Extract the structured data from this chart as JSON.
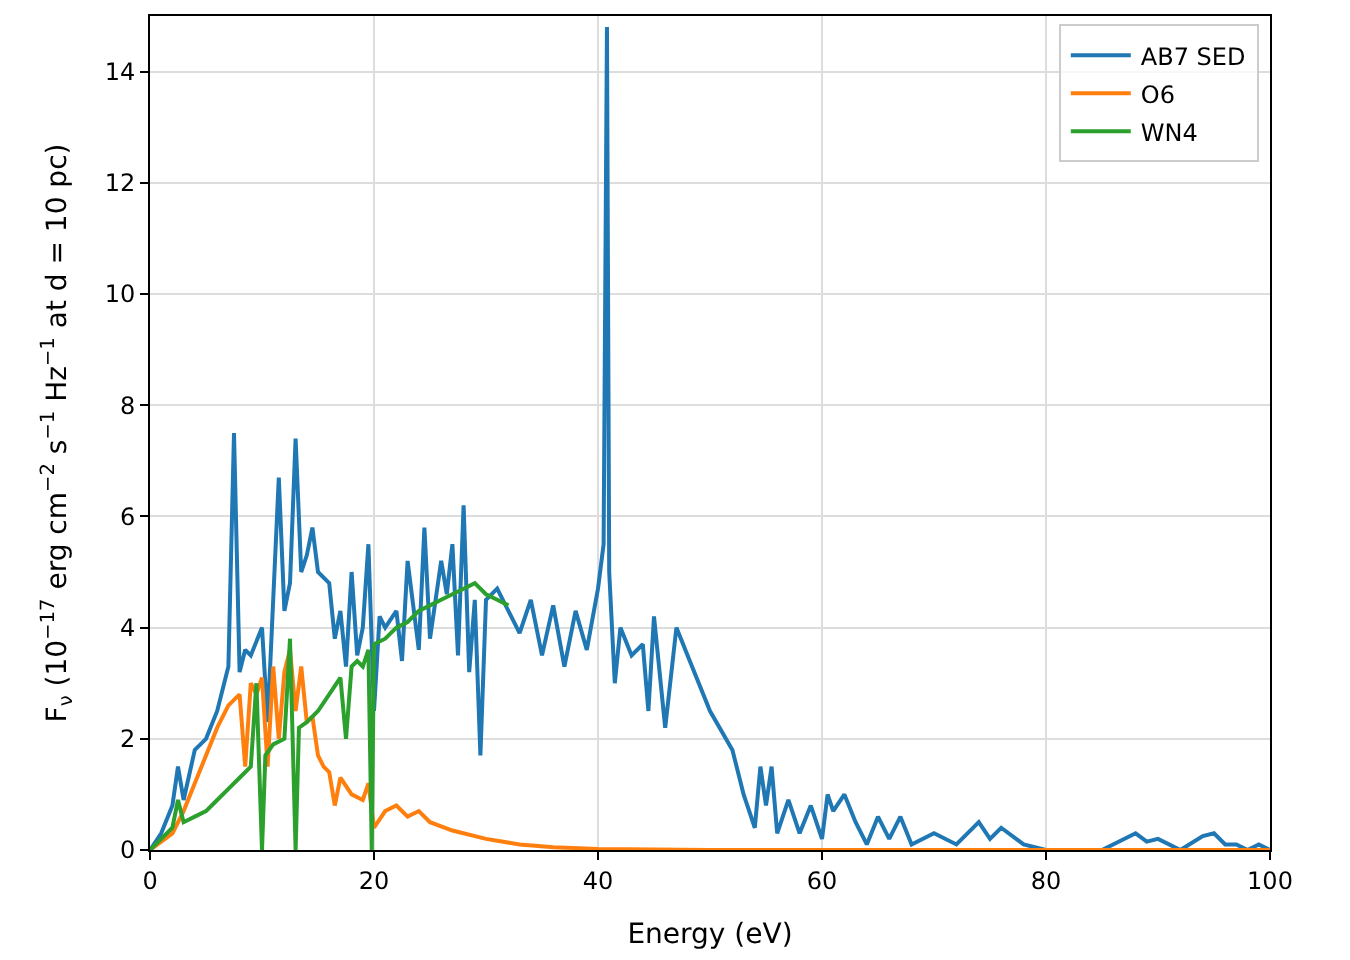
{
  "chart_data": {
    "type": "line",
    "xlabel": "Energy (eV)",
    "ylabel": "F$_{ν}$ (10$^{−17}$ erg cm$^{−2}$ s$^{−1}$ Hz$^{−1}$ at d = 10 pc)",
    "xlim": [
      0,
      100
    ],
    "xticks": [
      0,
      20,
      40,
      60,
      80,
      100
    ],
    "ylim": [
      0,
      15
    ],
    "yticks": [
      0,
      2,
      4,
      6,
      8,
      10,
      12,
      14
    ],
    "grid": true,
    "legend": "top right",
    "marker": "none",
    "line_style": "solid",
    "series": [
      {
        "name": "AB7 SED",
        "color": "#1f77b4",
        "x": [
          0,
          1,
          2,
          2.5,
          3,
          4,
          5,
          6,
          7,
          7.5,
          8,
          8.5,
          9,
          10,
          10.5,
          11,
          11.5,
          12,
          12.5,
          13,
          13.5,
          14,
          14.5,
          15,
          16,
          16.5,
          17,
          17.5,
          18,
          18.5,
          19,
          19.5,
          20,
          20.5,
          21,
          22,
          22.5,
          23,
          24,
          24.5,
          25,
          26,
          26.5,
          27,
          27.5,
          28,
          28.5,
          29,
          29.5,
          30,
          31,
          32,
          33,
          34,
          35,
          36,
          37,
          38,
          39,
          40,
          40.5,
          40.8,
          41,
          41.5,
          42,
          43,
          44,
          44.5,
          45,
          46,
          47,
          48,
          50,
          52,
          53,
          54,
          54.5,
          55,
          55.5,
          56,
          57,
          58,
          59,
          60,
          60.5,
          61,
          62,
          63,
          64,
          65,
          66,
          67,
          68,
          70,
          72,
          74,
          75,
          76,
          78,
          80,
          82,
          85,
          88,
          89,
          90,
          92,
          94,
          95,
          96,
          97,
          98,
          99,
          100
        ],
        "values": [
          0,
          0.3,
          0.8,
          1.5,
          0.9,
          1.8,
          2.0,
          2.5,
          3.3,
          7.5,
          3.2,
          3.6,
          3.5,
          4.0,
          2.3,
          4.5,
          6.7,
          4.3,
          4.8,
          7.4,
          5.0,
          5.3,
          5.8,
          5.0,
          4.8,
          3.8,
          4.3,
          3.3,
          5.0,
          3.5,
          4.0,
          5.5,
          2.5,
          4.2,
          4.0,
          4.3,
          3.4,
          5.2,
          3.6,
          5.8,
          3.8,
          5.2,
          4.6,
          5.5,
          3.5,
          6.2,
          3.2,
          4.5,
          1.7,
          4.5,
          4.7,
          4.3,
          3.9,
          4.5,
          3.5,
          4.4,
          3.3,
          4.3,
          3.6,
          4.7,
          5.5,
          14.8,
          5.0,
          3.0,
          4.0,
          3.5,
          3.7,
          2.5,
          4.2,
          2.2,
          4.0,
          3.5,
          2.5,
          1.8,
          1.0,
          0.4,
          1.5,
          0.8,
          1.5,
          0.3,
          0.9,
          0.3,
          0.8,
          0.2,
          1.0,
          0.7,
          1.0,
          0.5,
          0.1,
          0.6,
          0.2,
          0.6,
          0.1,
          0.3,
          0.1,
          0.5,
          0.2,
          0.4,
          0.1,
          0.0,
          0.0,
          0.0,
          0.3,
          0.15,
          0.2,
          0.0,
          0.25,
          0.3,
          0.1,
          0.1,
          0.0,
          0.1,
          0.0
        ]
      },
      {
        "name": "O6",
        "color": "#ff7f0e",
        "x": [
          0,
          2,
          3,
          4,
          5,
          6,
          7,
          8,
          8.5,
          9,
          9.5,
          10,
          10.5,
          11,
          11.5,
          12,
          12.5,
          13,
          13.5,
          14,
          14.5,
          15,
          15.5,
          16,
          16.5,
          17,
          18,
          19,
          19.5,
          20,
          21,
          22,
          23,
          24,
          25,
          27,
          30,
          33,
          36,
          40,
          50,
          100
        ],
        "values": [
          0,
          0.3,
          0.7,
          1.2,
          1.7,
          2.2,
          2.6,
          2.8,
          1.5,
          3.0,
          2.8,
          3.1,
          1.5,
          3.3,
          2.0,
          3.2,
          3.6,
          2.5,
          3.3,
          2.3,
          2.4,
          1.7,
          1.5,
          1.4,
          0.8,
          1.3,
          1.0,
          0.9,
          1.2,
          0.4,
          0.7,
          0.8,
          0.6,
          0.7,
          0.5,
          0.35,
          0.2,
          0.1,
          0.05,
          0.02,
          0.0,
          0.0
        ]
      },
      {
        "name": "WN4",
        "color": "#2ca02c",
        "x": [
          0,
          1,
          2,
          2.5,
          3,
          4,
          5,
          6,
          7,
          8,
          9,
          9.5,
          10,
          10.3,
          11,
          12,
          12.5,
          13,
          13.3,
          14,
          15,
          16,
          17,
          17.5,
          18,
          18.5,
          19,
          19.5,
          19.8,
          20,
          21,
          22,
          23,
          24,
          25,
          26,
          27,
          28,
          29,
          30,
          31,
          32
        ],
        "values": [
          0,
          0.2,
          0.4,
          0.9,
          0.5,
          0.6,
          0.7,
          0.9,
          1.1,
          1.3,
          1.5,
          3.0,
          0.0,
          1.7,
          1.9,
          2.0,
          3.8,
          0.0,
          2.2,
          2.3,
          2.5,
          2.8,
          3.1,
          2.0,
          3.3,
          3.4,
          3.3,
          3.6,
          0.0,
          3.7,
          3.8,
          4.0,
          4.1,
          4.3,
          4.4,
          4.5,
          4.6,
          4.7,
          4.8,
          4.6,
          4.5,
          4.4
        ]
      }
    ]
  }
}
